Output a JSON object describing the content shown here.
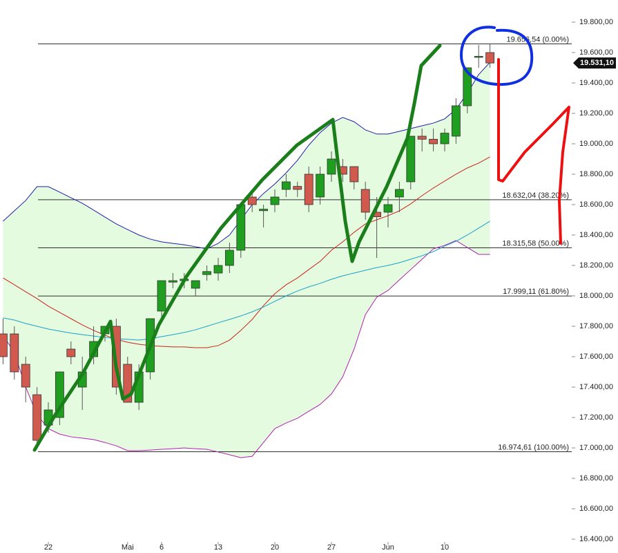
{
  "chart_data": {
    "type": "candlestick",
    "categories": [
      null,
      null,
      null,
      null,
      "22",
      null,
      null,
      null,
      null,
      null,
      null,
      "Mai",
      null,
      null,
      "6",
      null,
      null,
      null,
      null,
      "13",
      null,
      null,
      null,
      null,
      "20",
      null,
      null,
      null,
      null,
      "27",
      null,
      null,
      null,
      null,
      "Jun",
      null,
      null,
      null,
      null,
      "10",
      null,
      null,
      null,
      null
    ],
    "open": [
      17750,
      17750,
      17550,
      17350,
      17150,
      17200,
      17650,
      17400,
      17600,
      17750,
      17800,
      17550,
      17300,
      17500,
      17900,
      18090,
      18100,
      18050,
      18140,
      18150,
      18200,
      18300,
      18650,
      18560,
      18600,
      18700,
      18720,
      18800,
      18650,
      18800,
      18850,
      18850,
      18700,
      18550,
      18550,
      18650,
      18750,
      19050,
      19030,
      19000,
      19050,
      19250,
      19570,
      19600
    ],
    "high": [
      17850,
      17800,
      17600,
      17400,
      17300,
      17500,
      17700,
      17600,
      17800,
      17800,
      17850,
      17600,
      17550,
      17850,
      18100,
      18150,
      18150,
      18100,
      18200,
      18250,
      18350,
      18600,
      18700,
      18600,
      18700,
      18800,
      18750,
      18850,
      18850,
      18950,
      18900,
      18850,
      18750,
      18650,
      18650,
      18750,
      19050,
      19100,
      19100,
      19100,
      19300,
      19500,
      19650,
      19656
    ],
    "low": [
      17550,
      17450,
      17300,
      17000,
      17100,
      17150,
      17550,
      17250,
      17550,
      17700,
      17350,
      17300,
      17250,
      17450,
      17850,
      18050,
      18050,
      18000,
      18100,
      18100,
      18150,
      18250,
      18550,
      18450,
      18550,
      18650,
      18650,
      18550,
      18600,
      18750,
      18750,
      18700,
      18500,
      18250,
      18450,
      18550,
      18700,
      18950,
      18950,
      18950,
      19000,
      19200,
      19500,
      19500
    ],
    "close": [
      17600,
      17500,
      17400,
      17050,
      17250,
      17500,
      17600,
      17500,
      17700,
      17800,
      17400,
      17300,
      17500,
      17850,
      18100,
      18100,
      18110,
      18100,
      18160,
      18200,
      18300,
      18600,
      18600,
      18570,
      18650,
      18750,
      18700,
      18600,
      18800,
      18900,
      18800,
      18750,
      18550,
      18520,
      18600,
      18700,
      19050,
      19030,
      19000,
      19070,
      19250,
      19500,
      19575,
      19531.1
    ],
    "up_color": "#1f9e1f",
    "down_color": "#d05a4e",
    "series": [
      {
        "color": "#1f1fa8",
        "values": [
          18491,
          18559,
          18627,
          18718,
          18718,
          18682,
          18645,
          18609,
          18564,
          18518,
          18473,
          18436,
          18400,
          18373,
          18355,
          18345,
          18336,
          18323,
          18309,
          18345,
          18400,
          18500,
          18600,
          18673,
          18736,
          18809,
          18891,
          18991,
          19073,
          19136,
          19173,
          19145,
          19091,
          19064,
          19064,
          19082,
          19100,
          19118,
          19136,
          19164,
          19227,
          19332,
          19455,
          19536
        ]
      },
      {
        "color": "#b21fb2",
        "values": [
          17741,
          17627,
          17400,
          17218,
          17127,
          17091,
          17073,
          17064,
          17055,
          17036,
          17014,
          16982,
          16982,
          16986,
          16991,
          16995,
          17000,
          16995,
          16991,
          16973,
          16955,
          16936,
          16945,
          17036,
          17127,
          17164,
          17195,
          17241,
          17286,
          17355,
          17468,
          17650,
          17877,
          17991,
          18036,
          18105,
          18173,
          18241,
          18309,
          18332,
          18364,
          18318,
          18273,
          18273
        ]
      },
      {
        "color": "#c8241c",
        "values": [
          18118,
          18073,
          18027,
          17982,
          17932,
          17891,
          17850,
          17809,
          17773,
          17741,
          17714,
          17695,
          17682,
          17673,
          17668,
          17664,
          17664,
          17659,
          17659,
          17673,
          17709,
          17773,
          17845,
          17936,
          18014,
          18073,
          18118,
          18173,
          18227,
          18300,
          18355,
          18418,
          18473,
          18500,
          18527,
          18559,
          18605,
          18659,
          18709,
          18755,
          18800,
          18841,
          18873,
          18914
        ]
      },
      {
        "color": "#1aa0c8",
        "values": [
          17855,
          17841,
          17818,
          17800,
          17782,
          17768,
          17755,
          17745,
          17736,
          17727,
          17718,
          17714,
          17709,
          17718,
          17732,
          17745,
          17759,
          17777,
          17800,
          17823,
          17845,
          17868,
          17895,
          17927,
          17964,
          18000,
          18032,
          18059,
          18082,
          18109,
          18132,
          18150,
          18168,
          18186,
          18200,
          18218,
          18241,
          18264,
          18291,
          18327,
          18359,
          18400,
          18445,
          18491
        ]
      }
    ],
    "levels": [
      {
        "value": 19656.54,
        "label": "19.656,54 (0.00%)"
      },
      {
        "value": 18632.04,
        "label": "18.632,04 (38.20%)"
      },
      {
        "value": 18315.58,
        "label": "18.315,58 (50.00%)"
      },
      {
        "value": 17999.11,
        "label": "17.999,11 (61.80%)"
      },
      {
        "value": 16974.61,
        "label": "16.974,61 (100.00%)"
      }
    ],
    "last": {
      "value": 19531.1,
      "label": "19.531,10"
    },
    "ylim": [
      16400,
      19800
    ],
    "yticks": [
      {
        "value": 19800,
        "label": "19.800,00"
      },
      {
        "value": 19600,
        "label": "19.600,00"
      },
      {
        "value": 19400,
        "label": "19.400,00"
      },
      {
        "value": 19200,
        "label": "19.200,00"
      },
      {
        "value": 19000,
        "label": "19.000,00"
      },
      {
        "value": 18800,
        "label": "18.800,00"
      },
      {
        "value": 18600,
        "label": "18.600,00"
      },
      {
        "value": 18400,
        "label": "18.400,00"
      },
      {
        "value": 18200,
        "label": "18.200,00"
      },
      {
        "value": 18000,
        "label": "18.000,00"
      },
      {
        "value": 17800,
        "label": "17.800,00"
      },
      {
        "value": 17600,
        "label": "17.600,00"
      },
      {
        "value": 17400,
        "label": "17.400,00"
      },
      {
        "value": 17200,
        "label": "17.200,00"
      },
      {
        "value": 17000,
        "label": "17.000,00"
      },
      {
        "value": 16800,
        "label": "16.800,00"
      },
      {
        "value": 16600,
        "label": "16.600,00"
      },
      {
        "value": 16400,
        "label": "16.400,00"
      }
    ]
  }
}
